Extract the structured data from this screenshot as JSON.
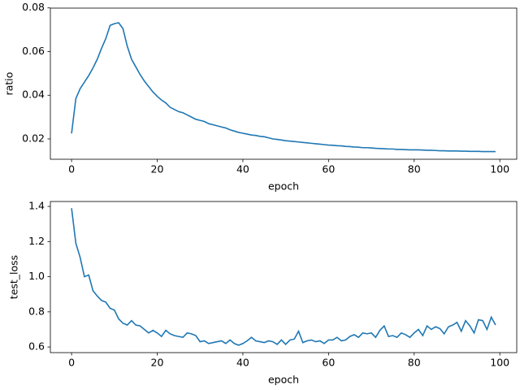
{
  "chart_data": [
    {
      "type": "line",
      "x_label": "epoch",
      "y_label": "ratio",
      "x": [
        0,
        1,
        2,
        3,
        4,
        5,
        6,
        7,
        8,
        9,
        10,
        11,
        12,
        13,
        14,
        15,
        16,
        17,
        18,
        19,
        20,
        21,
        22,
        23,
        24,
        25,
        26,
        27,
        28,
        29,
        30,
        31,
        32,
        33,
        34,
        35,
        36,
        37,
        38,
        39,
        40,
        41,
        42,
        43,
        44,
        45,
        46,
        47,
        48,
        49,
        50,
        51,
        52,
        53,
        54,
        55,
        56,
        57,
        58,
        59,
        60,
        61,
        62,
        63,
        64,
        65,
        66,
        67,
        68,
        69,
        70,
        71,
        72,
        73,
        74,
        75,
        76,
        77,
        78,
        79,
        80,
        81,
        82,
        83,
        84,
        85,
        86,
        87,
        88,
        89,
        90,
        91,
        92,
        93,
        94,
        95,
        96,
        97,
        98,
        99
      ],
      "series": [
        {
          "color": "#1f77b4",
          "values": [
            0.0225,
            0.0385,
            0.043,
            0.046,
            0.049,
            0.0525,
            0.0565,
            0.0615,
            0.066,
            0.072,
            0.0728,
            0.0732,
            0.0705,
            0.0625,
            0.0565,
            0.053,
            0.0495,
            0.0465,
            0.044,
            0.0415,
            0.0395,
            0.0378,
            0.0365,
            0.0345,
            0.0335,
            0.0325,
            0.032,
            0.031,
            0.03,
            0.029,
            0.0285,
            0.028,
            0.027,
            0.0265,
            0.026,
            0.0255,
            0.025,
            0.0242,
            0.0236,
            0.023,
            0.0226,
            0.0222,
            0.0218,
            0.0216,
            0.0212,
            0.021,
            0.0205,
            0.02,
            0.0198,
            0.0195,
            0.0192,
            0.019,
            0.0188,
            0.0186,
            0.0184,
            0.0182,
            0.018,
            0.0178,
            0.0176,
            0.0174,
            0.0172,
            0.0171,
            0.0169,
            0.0168,
            0.0166,
            0.0165,
            0.0163,
            0.0162,
            0.016,
            0.016,
            0.0159,
            0.0157,
            0.0156,
            0.0155,
            0.0154,
            0.0154,
            0.0152,
            0.0152,
            0.0151,
            0.015,
            0.015,
            0.015,
            0.0149,
            0.0148,
            0.0148,
            0.0147,
            0.0146,
            0.0146,
            0.0145,
            0.0145,
            0.0145,
            0.0144,
            0.0144,
            0.0143,
            0.0143,
            0.0143,
            0.0142,
            0.0142,
            0.0142,
            0.0142
          ]
        }
      ],
      "xlim": [
        -4.95,
        103.95
      ],
      "xticks": [
        0,
        20,
        40,
        60,
        80,
        100
      ],
      "ylim": [
        0.0107,
        0.0799
      ],
      "yticks": [
        0.02,
        0.04,
        0.06,
        0.08
      ]
    },
    {
      "type": "line",
      "x_label": "epoch",
      "y_label": "test_loss",
      "x": [
        0,
        1,
        2,
        3,
        4,
        5,
        6,
        7,
        8,
        9,
        10,
        11,
        12,
        13,
        14,
        15,
        16,
        17,
        18,
        19,
        20,
        21,
        22,
        23,
        24,
        25,
        26,
        27,
        28,
        29,
        30,
        31,
        32,
        33,
        34,
        35,
        36,
        37,
        38,
        39,
        40,
        41,
        42,
        43,
        44,
        45,
        46,
        47,
        48,
        49,
        50,
        51,
        52,
        53,
        54,
        55,
        56,
        57,
        58,
        59,
        60,
        61,
        62,
        63,
        64,
        65,
        66,
        67,
        68,
        69,
        70,
        71,
        72,
        73,
        74,
        75,
        76,
        77,
        78,
        79,
        80,
        81,
        82,
        83,
        84,
        85,
        86,
        87,
        88,
        89,
        90,
        91,
        92,
        93,
        94,
        95,
        96,
        97,
        98,
        99
      ],
      "series": [
        {
          "color": "#1f77b4",
          "values": [
            1.39,
            1.19,
            1.11,
            1.0,
            1.01,
            0.92,
            0.89,
            0.865,
            0.855,
            0.82,
            0.81,
            0.76,
            0.735,
            0.725,
            0.75,
            0.725,
            0.72,
            0.7,
            0.68,
            0.695,
            0.68,
            0.66,
            0.695,
            0.675,
            0.665,
            0.66,
            0.655,
            0.68,
            0.675,
            0.665,
            0.63,
            0.635,
            0.62,
            0.625,
            0.63,
            0.635,
            0.62,
            0.64,
            0.62,
            0.61,
            0.62,
            0.635,
            0.655,
            0.635,
            0.63,
            0.625,
            0.635,
            0.63,
            0.615,
            0.64,
            0.615,
            0.64,
            0.645,
            0.69,
            0.625,
            0.635,
            0.64,
            0.63,
            0.635,
            0.62,
            0.64,
            0.64,
            0.655,
            0.635,
            0.64,
            0.66,
            0.67,
            0.655,
            0.68,
            0.675,
            0.68,
            0.655,
            0.695,
            0.72,
            0.66,
            0.665,
            0.655,
            0.68,
            0.67,
            0.655,
            0.68,
            0.7,
            0.665,
            0.72,
            0.7,
            0.715,
            0.705,
            0.675,
            0.715,
            0.725,
            0.74,
            0.69,
            0.75,
            0.72,
            0.68,
            0.755,
            0.75,
            0.7,
            0.77,
            0.725
          ]
        }
      ],
      "xlim": [
        -4.95,
        103.95
      ],
      "xticks": [
        0,
        20,
        40,
        60,
        80,
        100
      ],
      "ylim": [
        0.568,
        1.428
      ],
      "yticks": [
        {
          "value": 0.6,
          "label": "0.6"
        },
        {
          "value": 0.8,
          "label": "0.8"
        },
        {
          "value": 1.0,
          "label": "1.0"
        },
        {
          "value": 1.2,
          "label": "1.2"
        },
        {
          "value": 1.4,
          "label": "1.4"
        }
      ]
    }
  ]
}
